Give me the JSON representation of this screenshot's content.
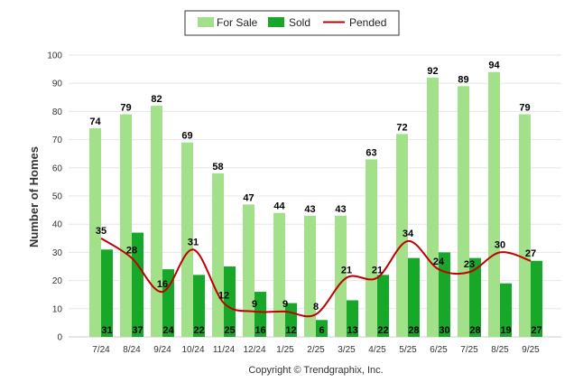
{
  "chart_data": {
    "type": "bar",
    "categories": [
      "7/24",
      "8/24",
      "9/24",
      "10/24",
      "11/24",
      "12/24",
      "1/25",
      "2/25",
      "3/25",
      "4/25",
      "5/25",
      "6/25",
      "7/25",
      "8/25",
      "9/25"
    ],
    "series": [
      {
        "name": "For Sale",
        "type": "bar",
        "color": "#a3e08a",
        "values": [
          74,
          79,
          82,
          69,
          58,
          47,
          44,
          43,
          43,
          63,
          72,
          92,
          89,
          94,
          79
        ]
      },
      {
        "name": "Sold",
        "type": "bar",
        "color": "#17a82a",
        "values": [
          31,
          37,
          24,
          22,
          25,
          16,
          12,
          6,
          13,
          22,
          28,
          30,
          28,
          19,
          27
        ]
      },
      {
        "name": "Pended",
        "type": "line",
        "color": "#c00000",
        "values": [
          35,
          28,
          16,
          31,
          12,
          9,
          9,
          8,
          21,
          21,
          34,
          24,
          23,
          30,
          27
        ]
      }
    ],
    "ylabel": "Number of Homes",
    "ylim": [
      0,
      100
    ],
    "yticks": [
      0,
      10,
      20,
      30,
      40,
      50,
      60,
      70,
      80,
      90,
      100
    ],
    "grid": true,
    "legend": "top-center"
  },
  "footer": {
    "copyright": "Copyright © Trendgraphix, Inc."
  }
}
